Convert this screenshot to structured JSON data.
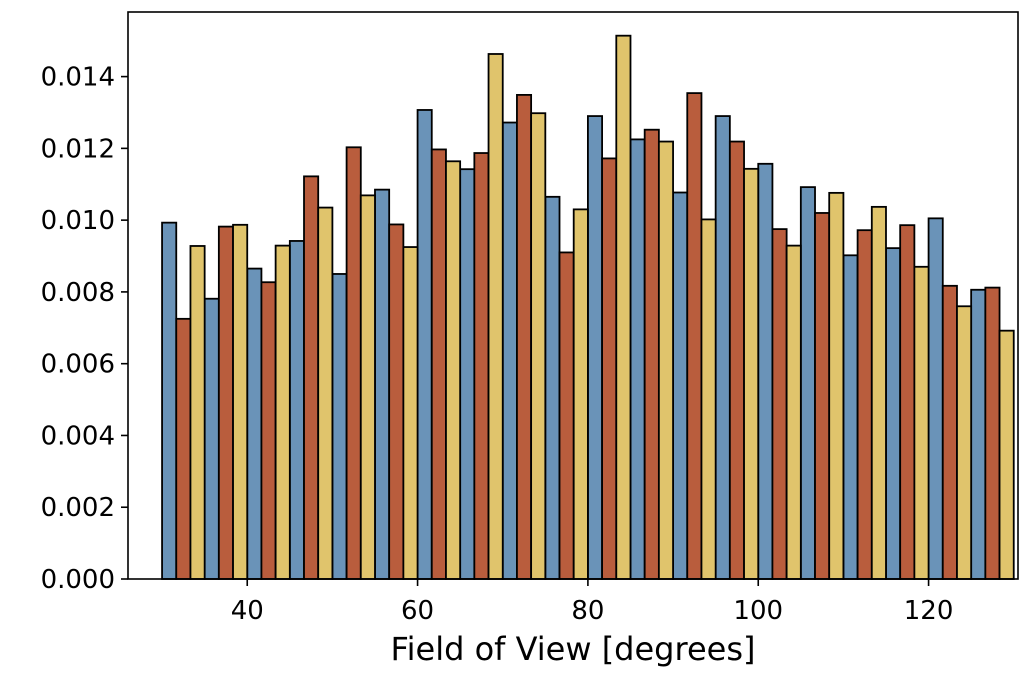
{
  "chart_data": {
    "type": "bar",
    "xlabel": "Field of View [degrees]",
    "ylabel": "",
    "xlim": [
      26,
      130.5
    ],
    "ylim": [
      0,
      0.0158
    ],
    "x_ticks": [
      40,
      60,
      80,
      100,
      120
    ],
    "y_ticks": [
      0.0,
      0.002,
      0.004,
      0.006,
      0.008,
      0.01,
      0.012,
      0.014
    ],
    "y_tick_labels": [
      "0.000",
      "0.002",
      "0.004",
      "0.006",
      "0.008",
      "0.010",
      "0.012",
      "0.014"
    ],
    "grid": false,
    "legend": "none",
    "bin_start": 30,
    "bin_width": 5,
    "series": [
      {
        "color": "#6a93b8",
        "values": [
          0.00993,
          0.00781,
          0.00865,
          0.00942,
          0.0085,
          0.01085,
          0.01307,
          0.01142,
          0.01272,
          0.01065,
          0.0129,
          0.01225,
          0.01077,
          0.0129,
          0.01157,
          0.01092,
          0.00902,
          0.00922,
          0.01005,
          0.00806
        ]
      },
      {
        "color": "#b95d3d",
        "values": [
          0.00725,
          0.00982,
          0.00827,
          0.01122,
          0.01203,
          0.00988,
          0.01197,
          0.01187,
          0.01349,
          0.0091,
          0.01172,
          0.01252,
          0.01354,
          0.01219,
          0.00975,
          0.0102,
          0.00972,
          0.00986,
          0.00817,
          0.00812
        ]
      },
      {
        "color": "#e0c46c",
        "values": [
          0.00928,
          0.00987,
          0.00929,
          0.01035,
          0.01069,
          0.00925,
          0.01164,
          0.01463,
          0.01298,
          0.0103,
          0.01514,
          0.01219,
          0.01002,
          0.01143,
          0.00929,
          0.01076,
          0.01037,
          0.0087,
          0.0076,
          0.00692
        ]
      }
    ]
  }
}
